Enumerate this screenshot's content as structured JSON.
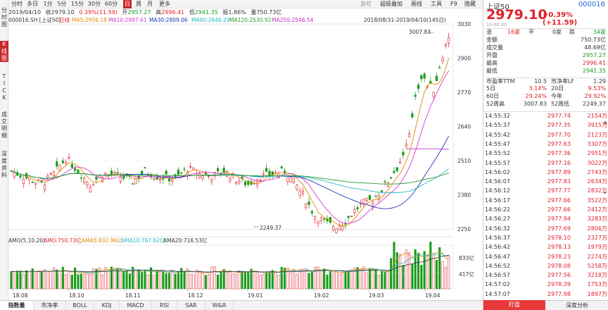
{
  "left_strip": {
    "items": [
      "分",
      "时",
      "图",
      "K",
      "线",
      "图",
      "T",
      "I",
      "C",
      "K",
      "成",
      "交",
      "明",
      "细",
      "深",
      "度",
      "资",
      "料"
    ]
  },
  "period_bar": {
    "items": [
      {
        "label": "分时",
        "active": false
      },
      {
        "label": "多日",
        "active": false
      },
      {
        "label": "1分",
        "active": false
      },
      {
        "label": "5分",
        "active": false
      },
      {
        "label": "15分",
        "active": false
      },
      {
        "label": "30分",
        "active": false
      },
      {
        "label": "60分",
        "active": false
      },
      {
        "label": "日",
        "active": true
      },
      {
        "label": "周",
        "active": false
      },
      {
        "label": "月",
        "active": false
      },
      {
        "label": "更多",
        "active": false
      }
    ],
    "right_items": [
      "复权",
      "超级叠加",
      "画线",
      "工具",
      "F9",
      "隐藏"
    ]
  },
  "info_bar": {
    "date": "2019/04/10",
    "close_label": "收",
    "close": "2979.10",
    "change_pct": "0.39%",
    "change": "(11.59)",
    "open_label": "开",
    "open": "2957.27",
    "high_label": "高",
    "high": "2996.41",
    "low_label": "低",
    "low": "2941.35",
    "amp_label": "振",
    "amp": "1.86%",
    "amount_label": "量",
    "amount": "750.73亿"
  },
  "ma_legend": {
    "code": "000016.SH [上证50]",
    "period": "日线",
    "items": [
      {
        "label": "MA5:2956.18",
        "color": "#e08a00"
      },
      {
        "label": "MA10:2887.61",
        "color": "#d63ad0"
      },
      {
        "label": "MA30:2809.06",
        "color": "#1a3ab0"
      },
      {
        "label": "MA60:2646.29",
        "color": "#23b8c8"
      },
      {
        "label": "MA120:2530.92",
        "color": "#2a9a2a"
      },
      {
        "label": "MA250:2546.54",
        "color": "#c030c0"
      }
    ],
    "range": "2018/08/31-2019/04/10(145日)"
  },
  "price_axis": [
    "3030",
    "2900",
    "2770",
    "2640",
    "2510",
    "2380",
    "2250"
  ],
  "annotations": {
    "high": "3007.83",
    "low": "2249.37"
  },
  "volume_panel": {
    "label": "AMO(5,10,20)",
    "items": [
      {
        "label": "AMO:750.73亿",
        "color": "#e0202a"
      },
      {
        "label": "AMA5:832.96亿",
        "color": "#e08a00"
      },
      {
        "label": "AMA10:787.62亿",
        "color": "#23b8c8"
      },
      {
        "label": "AMA20:716.53亿",
        "color": "#333333"
      }
    ],
    "axis": [
      "833亿",
      "417亿"
    ]
  },
  "x_axis": [
    "18.08",
    "18.10",
    "18.11",
    "18.12",
    "19.01",
    "19.02",
    "19.03",
    "19.04"
  ],
  "bottom_tabs": [
    "指数量",
    "市净率",
    "BOLL",
    "KDJ",
    "MACD",
    "RSI",
    "SAR",
    "W&R"
  ],
  "quote": {
    "name": "上证50",
    "code": "000016",
    "price": "2979.10",
    "change": "+0.39% (+11.59)",
    "time": "15:00:20",
    "rise_label": "涨",
    "rise_count": "16家",
    "flat_label": "平",
    "flat_count": "0家",
    "fall_label": "跌",
    "fall_count": "34家",
    "stats": [
      {
        "label": "金额",
        "value": "750.73亿",
        "color": "#333333"
      },
      {
        "label": "成交量",
        "value": "48.69亿",
        "color": "#333333"
      },
      {
        "label": "开盘",
        "value": "2957.27",
        "color": "#1a9a1a"
      },
      {
        "label": "最高",
        "value": "2996.41",
        "color": "#e0202a"
      },
      {
        "label": "最低",
        "value": "2941.35",
        "color": "#1a9a1a"
      }
    ],
    "pe": {
      "label": "市盈率TTM",
      "value": "10.5",
      "label2": "市净率LF",
      "value2": "1.29"
    },
    "d5": {
      "label": "5日",
      "value": "3.14%",
      "label2": "20日",
      "value2": "9.53%"
    },
    "d60": {
      "label": "60日",
      "value": "29.24%",
      "label2": "今年",
      "value2": "29.92%"
    },
    "w52": {
      "label": "52周高",
      "value": "3007.83",
      "label2": "52周低",
      "value2": "2249.37"
    }
  },
  "ticks": [
    {
      "time": "14:55:32",
      "price": "2977.74",
      "vol": "2154万"
    },
    {
      "time": "14:55:37",
      "price": "2977.35",
      "vol": "3915万"
    },
    {
      "time": "14:55:42",
      "price": "2977.70",
      "vol": "2123万"
    },
    {
      "time": "14:55:47",
      "price": "2977.63",
      "vol": "3307万"
    },
    {
      "time": "14:55:52",
      "price": "2977.36",
      "vol": "2951万"
    },
    {
      "time": "14:55:57",
      "price": "2977.16",
      "vol": "3022万"
    },
    {
      "time": "14:56:02",
      "price": "2977.89",
      "vol": "2743万"
    },
    {
      "time": "14:56:07",
      "price": "2977.83",
      "vol": "2634万"
    },
    {
      "time": "14:56:12",
      "price": "2977.77",
      "vol": "2832万"
    },
    {
      "time": "14:56:17",
      "price": "2977.66",
      "vol": "3522万"
    },
    {
      "time": "14:56:22",
      "price": "2977.66",
      "vol": "2412万"
    },
    {
      "time": "14:56:27",
      "price": "2977.94",
      "vol": "3283万"
    },
    {
      "time": "14:56:32",
      "price": "2977.69",
      "vol": "2806万"
    },
    {
      "time": "14:56:37",
      "price": "2978.10",
      "vol": "2327万"
    },
    {
      "time": "14:56:42",
      "price": "2978.13",
      "vol": "1979万"
    },
    {
      "time": "14:56:47",
      "price": "2978.23",
      "vol": "2274万"
    },
    {
      "time": "14:56:52",
      "price": "2978.08",
      "vol": "5258万"
    },
    {
      "time": "14:56:57",
      "price": "2977.56",
      "vol": "3218万"
    },
    {
      "time": "14:57:02",
      "price": "2978.39",
      "vol": "1753万"
    },
    {
      "time": "14:57:07",
      "price": "2977.98",
      "vol": "1897万"
    }
  ],
  "bottom_right_tabs": [
    "盯盘",
    "深度分析"
  ]
}
